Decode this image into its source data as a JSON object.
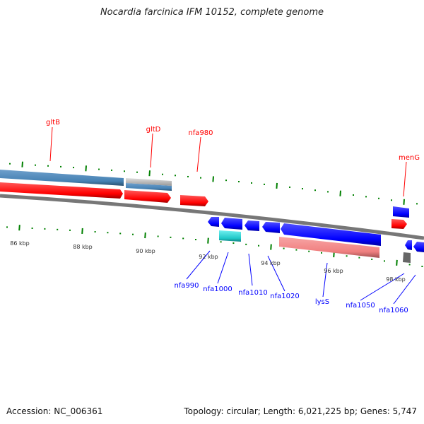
{
  "title": "Nocardia farcinica IFM 10152, complete genome",
  "footer": {
    "accession": "Accession: NC_006361",
    "summary": "Topology: circular; Length: 6,021,225 bp; Genes: 5,747"
  },
  "colors": {
    "forward": "#0000ff",
    "reverse": "#ff0000",
    "rna": "#4682b4",
    "backbone": "#808080",
    "tick": "#008000",
    "pseudo": "#f08080",
    "cyan": "#20c8c8"
  },
  "scale_labels": [
    "86 kbp",
    "88 kbp",
    "90 kbp",
    "92 kbp",
    "94 kbp",
    "96 kbp",
    "98 kbp"
  ],
  "top_labels": [
    "gltB",
    "gltD",
    "nfa980",
    "menG"
  ],
  "bottom_labels": [
    "nfa990",
    "nfa1000",
    "nfa1010",
    "nfa1020",
    "lysS",
    "nfa1050",
    "nfa1060"
  ]
}
